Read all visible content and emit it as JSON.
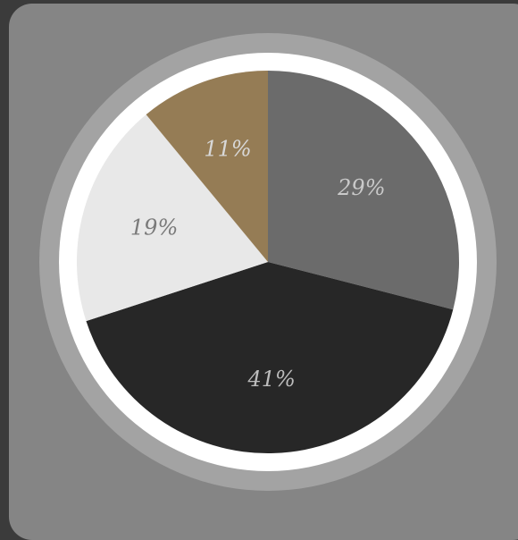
{
  "chart_data": {
    "type": "pie",
    "title": "",
    "legend": "none",
    "start_angle_deg": 0,
    "direction": "clockwise",
    "slices": [
      {
        "label": "29%",
        "value": 29,
        "color": "#6b6b6b",
        "text_color": "#c9c9c9"
      },
      {
        "label": "41%",
        "value": 41,
        "color": "#272727",
        "text_color": "#bdbdbd"
      },
      {
        "label": "19%",
        "value": 19,
        "color": "#e8e8e8",
        "text_color": "#7a7a7a"
      },
      {
        "label": "11%",
        "value": 11,
        "color": "#957c55",
        "text_color": "#d8d8d8"
      }
    ]
  },
  "colors": {
    "page_background": "#3b3b3b",
    "card_background": "#858585",
    "outer_ring": "#a3a3a3",
    "inner_ring": "#ffffff"
  }
}
